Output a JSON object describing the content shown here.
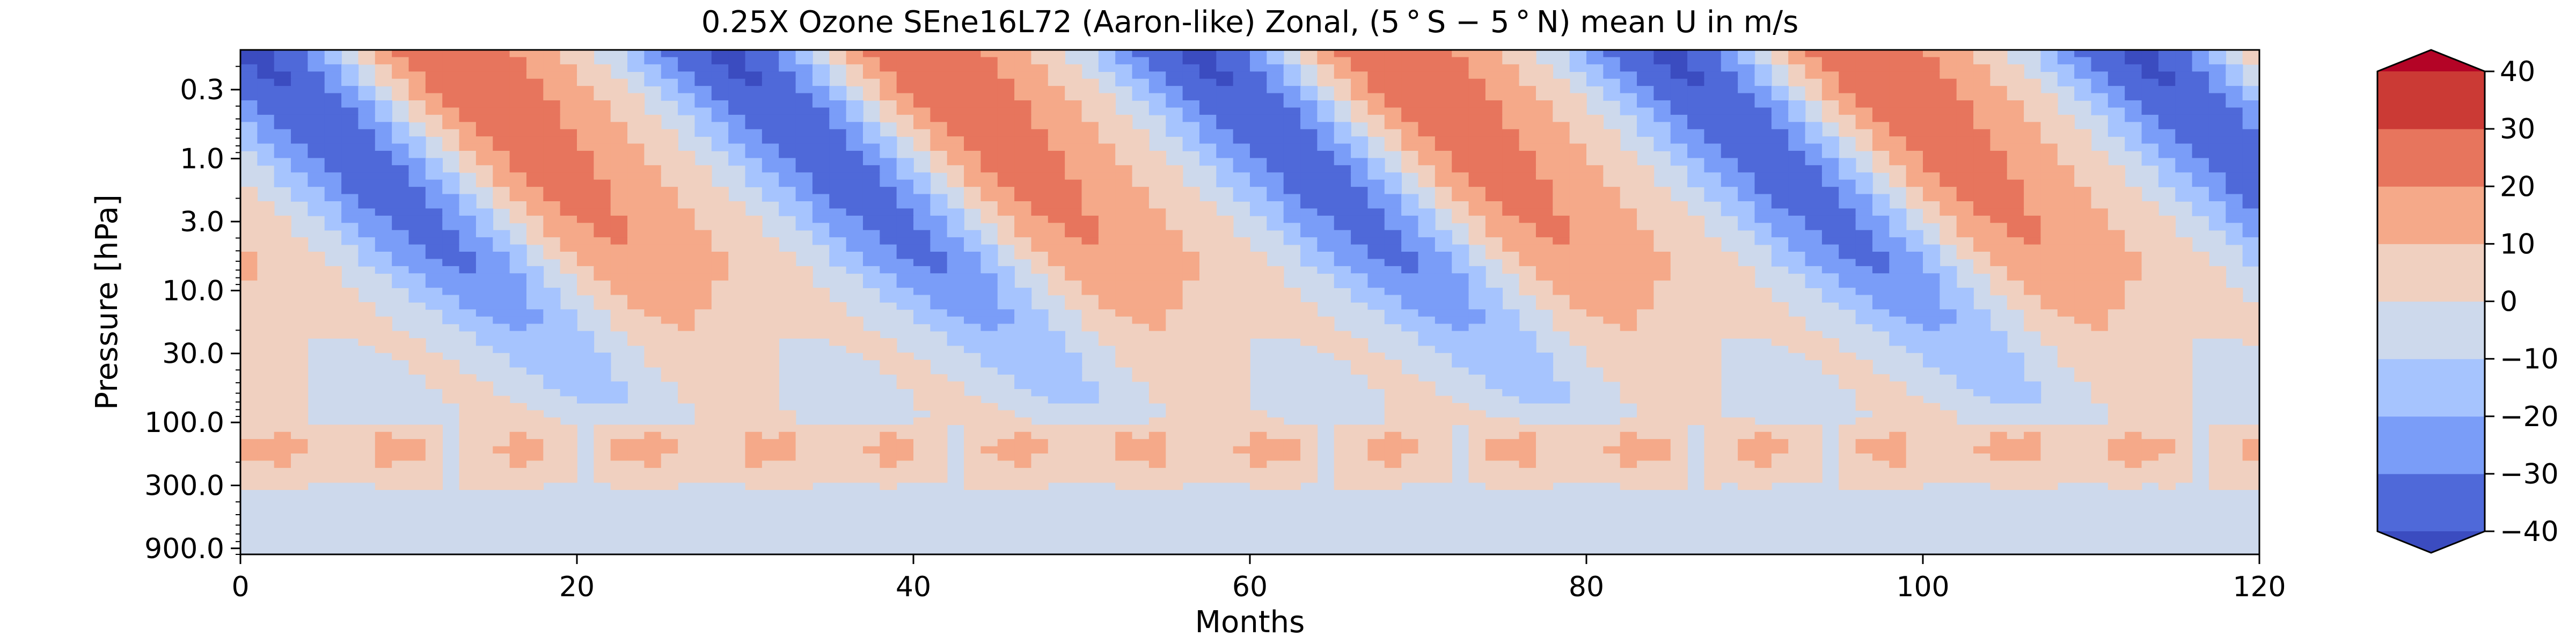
{
  "chart_data": {
    "type": "heatmap",
    "subtype": "filled-contour",
    "title": "0.25X Ozone SEne16L72 (Aaron-like) Zonal, (5$^\\circ$S$-$5$^\\circ$N) mean U in m/s",
    "title_display": "0.25X Ozone SEne16L72 (Aaron-like) Zonal, (5 ° S − 5 ° N) mean U in m/s",
    "xlabel": "Months",
    "ylabel": "Pressure [hPa]",
    "xlim": [
      0,
      120
    ],
    "ylim": [
      1000,
      0.15
    ],
    "yscale": "log",
    "x_ticks": [
      0,
      20,
      40,
      60,
      80,
      100,
      120
    ],
    "x_tick_labels": [
      "0",
      "20",
      "40",
      "60",
      "80",
      "100",
      "120"
    ],
    "y_ticks": [
      0.3,
      1.0,
      3.0,
      10.0,
      30.0,
      100.0,
      300.0,
      900.0
    ],
    "y_tick_labels": [
      "0.3",
      "1.0",
      "3.0",
      "10.0",
      "30.0",
      "100.0",
      "300.0",
      "900.0"
    ],
    "colorbar": {
      "levels": [
        -40,
        -30,
        -20,
        -10,
        0,
        10,
        20,
        30,
        40
      ],
      "tick_labels": [
        "−40",
        "−30",
        "−20",
        "−10",
        "0",
        "10",
        "20",
        "30",
        "40"
      ],
      "extend": "both",
      "colors": [
        "#3b4cc0",
        "#4f69d9",
        "#7a9df8",
        "#a6c4fe",
        "#cdd9ec",
        "#f0d0c0",
        "#f5a989",
        "#e7755d",
        "#cb3a35",
        "#b40426"
      ]
    },
    "qbo_description": {
      "period_months": 28,
      "descent": "easterly/westerly regimes descend from ~0.2 hPa to ~70 hPa",
      "lower_band": "westerly 10–20 m/s blobs near 150–200 hPa",
      "troposphere": "weak easterlies 0 to −10 m/s below 300 hPa"
    },
    "grid": false,
    "legend": "colorbar-right"
  }
}
